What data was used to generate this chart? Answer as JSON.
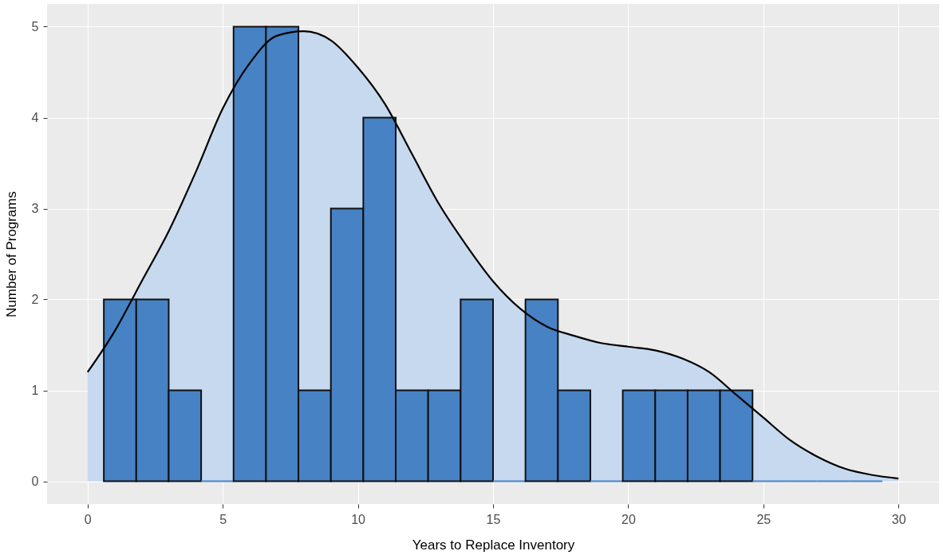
{
  "chart_data": {
    "type": "histogram",
    "xlabel": "Years to Replace Inventory",
    "ylabel": "Number of Programs",
    "bins": [
      0.6,
      1.8,
      3.0,
      4.2,
      5.4,
      6.6,
      7.8,
      9.0,
      10.2,
      11.4,
      12.6,
      13.8,
      15.0,
      16.2,
      17.4,
      18.6,
      19.8,
      21.0,
      22.2,
      23.4,
      24.6,
      25.8,
      27.0,
      28.2,
      29.4
    ],
    "values": [
      2,
      2,
      1,
      0,
      5,
      5,
      1,
      3,
      4,
      1,
      1,
      2,
      0,
      2,
      1,
      0,
      1,
      1,
      1,
      1,
      0,
      0,
      0,
      0
    ],
    "color": "#4682c4",
    "series": [
      {
        "type": "area",
        "color": "#c6d9ef",
        "x": [
          0,
          1,
          2,
          3,
          4,
          5,
          6,
          7,
          8,
          9,
          10,
          11,
          12,
          13,
          14,
          15,
          16,
          17,
          18,
          19,
          20,
          21,
          22,
          23,
          24,
          25,
          26,
          27,
          28,
          29,
          30
        ],
        "values": [
          1.2,
          1.65,
          2.2,
          2.75,
          3.4,
          4.1,
          4.6,
          4.9,
          4.95,
          4.85,
          4.55,
          4.15,
          3.6,
          3.05,
          2.6,
          2.2,
          1.9,
          1.7,
          1.6,
          1.52,
          1.48,
          1.44,
          1.35,
          1.2,
          0.95,
          0.7,
          0.45,
          0.27,
          0.14,
          0.07,
          0.03
        ]
      }
    ],
    "xlim": [
      -1.5,
      31.5
    ],
    "xticks": [
      0,
      5,
      10,
      15,
      20,
      25,
      30
    ],
    "ylim": [
      -0.25,
      5.25
    ],
    "yticks": [
      0,
      1,
      2,
      3,
      4,
      5
    ],
    "grid": true
  }
}
